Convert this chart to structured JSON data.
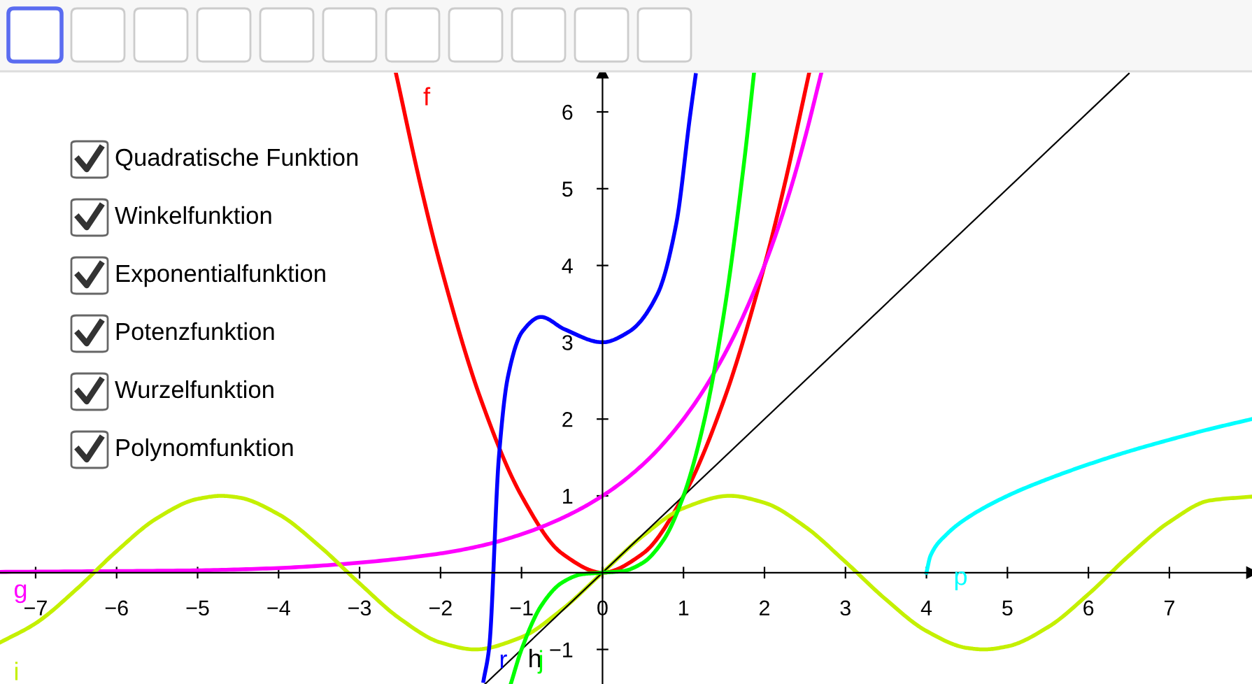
{
  "chart_data": {
    "type": "line",
    "xlim": [
      -7.44,
      8.02
    ],
    "ylim": [
      -1.45,
      6.51
    ],
    "xticks": [
      -7,
      -6,
      -5,
      -4,
      -3,
      -2,
      -1,
      0,
      1,
      2,
      3,
      4,
      5,
      6,
      7
    ],
    "yticks": [
      -1,
      1,
      2,
      3,
      4,
      5,
      6
    ],
    "grid": false,
    "legend": false,
    "marker": "none",
    "line_style": "solid",
    "series": [
      {
        "name": "f",
        "color": "#ff0000",
        "x": [
          -2.55,
          -2.25,
          -2,
          -1.5,
          -1,
          -0.5,
          0,
          0.5,
          1,
          1.5,
          2,
          2.25,
          2.55
        ],
        "values": [
          6.5,
          5.06,
          4,
          2.25,
          1,
          0.25,
          0,
          0.25,
          1,
          2.25,
          4,
          5.06,
          6.5
        ]
      },
      {
        "name": "g",
        "color": "#ff00ff",
        "x": [
          -7.44,
          -6,
          -5,
          -4,
          -3,
          -2,
          -1.5,
          -1,
          -0.5,
          0,
          0.5,
          1,
          1.5,
          2,
          2.3,
          2.5,
          2.7
        ],
        "values": [
          0.01,
          0.02,
          0.03,
          0.06,
          0.13,
          0.25,
          0.35,
          0.5,
          0.71,
          1,
          1.41,
          2,
          2.83,
          4,
          4.92,
          5.66,
          6.5
        ]
      },
      {
        "name": "i",
        "color": "#c4f000",
        "x": [
          -7.44,
          -7,
          -6.5,
          -6,
          -5.5,
          -5,
          -4.71,
          -4.5,
          -4,
          -3.5,
          -3,
          -2.5,
          -2,
          -1.57,
          -1,
          -0.5,
          0,
          0.5,
          1,
          1.57,
          2,
          2.5,
          3,
          3.5,
          4,
          4.5,
          4.71,
          5,
          5.5,
          6,
          6.5,
          7,
          7.5,
          8.02
        ],
        "values": [
          -0.91,
          -0.66,
          -0.22,
          0.28,
          0.71,
          0.96,
          1.0,
          0.98,
          0.76,
          0.35,
          -0.14,
          -0.6,
          -0.91,
          -1.0,
          -0.84,
          -0.48,
          0,
          0.48,
          0.84,
          1.0,
          0.91,
          0.6,
          0.14,
          -0.35,
          -0.76,
          -0.98,
          -1.0,
          -0.96,
          -0.71,
          -0.28,
          0.22,
          0.66,
          0.94,
          0.99
        ]
      },
      {
        "name": "r",
        "color": "#0000ff",
        "x": [
          -1.47,
          -1.4,
          -1.28,
          -1.17,
          -0.99,
          -0.76,
          -0.47,
          0,
          0.33,
          0.68,
          0.91,
          1.08,
          1.15
        ],
        "values": [
          -1.41,
          -0.98,
          1.5,
          2.54,
          3.14,
          3.33,
          3.17,
          3.0,
          3.14,
          3.63,
          4.54,
          5.94,
          6.48
        ]
      },
      {
        "name": "h",
        "color": "#000000",
        "x": [
          -1.45,
          6.5
        ],
        "values": [
          -1.45,
          6.5
        ]
      },
      {
        "name": "j",
        "color": "#00ff00",
        "x": [
          -1.13,
          -1,
          -0.75,
          -0.5,
          -0.25,
          0,
          0.25,
          0.5,
          0.75,
          1,
          1.25,
          1.5,
          1.75,
          1.87
        ],
        "values": [
          -1.44,
          -1,
          -0.42,
          -0.13,
          -0.02,
          0,
          0.02,
          0.13,
          0.42,
          1,
          1.95,
          3.38,
          5.36,
          6.5
        ]
      },
      {
        "name": "p",
        "color": "#00ffff",
        "x": [
          4,
          4.05,
          4.25,
          4.5,
          5,
          5.5,
          6,
          6.5,
          7,
          7.5,
          8.02
        ],
        "values": [
          0,
          0.22,
          0.5,
          0.71,
          1,
          1.22,
          1.41,
          1.58,
          1.73,
          1.87,
          2.0
        ]
      }
    ],
    "annotations": [
      "Quadratische Funktion",
      "Winkelfunktion",
      "Exponentialfunktion",
      "Potenzfunktion",
      "Wurzelfunktion",
      "Polynomfunktion"
    ]
  }
}
